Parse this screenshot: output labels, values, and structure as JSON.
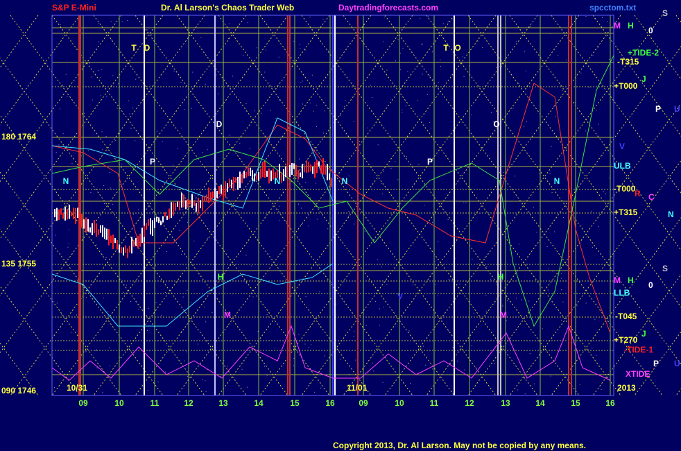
{
  "header": {
    "title_left": "S&P E-Mini",
    "title_center": "Dr. Al Larson's Chaos Trader Web",
    "site": "Daytradingforecasts.com",
    "file": "spcctom.txt"
  },
  "y_labels": [
    "180 1764",
    "135 1755",
    "090 1746"
  ],
  "x_labels": [
    "09",
    "10",
    "11",
    "12",
    "13",
    "14",
    "15",
    "16",
    "09",
    "10",
    "11",
    "12",
    "13",
    "14",
    "15",
    "16"
  ],
  "dates": [
    "10/31",
    "11/01",
    "2013"
  ],
  "right_labels": [
    "M",
    "H",
    "0",
    "S",
    "+TIDE-2",
    "-T315",
    "J",
    "+T000",
    "P",
    "U",
    "V",
    "ULB",
    "-T000",
    "R",
    "C",
    "+T315",
    "N",
    "S",
    "M",
    "H",
    "0",
    "LLB",
    "-T045",
    "J",
    "+T270",
    "-TIDE-1",
    "P",
    "U",
    "XTIDE"
  ],
  "chart_letters": [
    "T",
    "D",
    "T",
    "O",
    "D",
    "O",
    "P",
    "P",
    "N",
    "N",
    "N",
    "N",
    "H",
    "H",
    "M",
    "M",
    "V"
  ],
  "footer": "Copyright 2013, Dr. Al Larson. May not be copied by any means."
}
